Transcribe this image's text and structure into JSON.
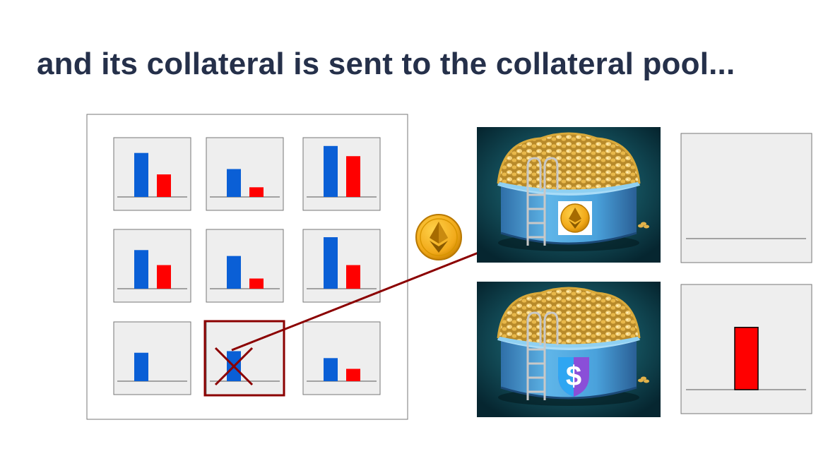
{
  "slide": {
    "title": "and its collateral is sent to the collateral pool..."
  },
  "colors": {
    "title": "#25304a",
    "blue_bar": "#0a5fd6",
    "red_bar": "#ff0000",
    "arrow": "#8b0000",
    "panel_bg": "#eeeeee",
    "panel_border": "#777777"
  },
  "icons": {
    "collateral_coin": "ethereum-coin-icon",
    "stablecoin_logo": "stablecoin-dollar-shield-icon",
    "pool_image": "coin-filled-pool-image",
    "cross_mark": "x-mark-icon"
  },
  "vaults": [
    {
      "collateral": 0.82,
      "debt": 0.42,
      "liquidated": false
    },
    {
      "collateral": 0.52,
      "debt": 0.18,
      "liquidated": false
    },
    {
      "collateral": 0.95,
      "debt": 0.76,
      "liquidated": false
    },
    {
      "collateral": 0.72,
      "debt": 0.44,
      "liquidated": false
    },
    {
      "collateral": 0.61,
      "debt": 0.19,
      "liquidated": false
    },
    {
      "collateral": 0.96,
      "debt": 0.44,
      "liquidated": false
    },
    {
      "collateral": 0.53,
      "debt": 0.0,
      "liquidated": false
    },
    {
      "collateral": 0.56,
      "debt": 0.0,
      "liquidated": true
    },
    {
      "collateral": 0.43,
      "debt": 0.23,
      "liquidated": false
    }
  ],
  "pools": [
    {
      "kind": "collateral-pool",
      "level": 0.0
    },
    {
      "kind": "stablecoin-pool",
      "level": 0.98
    }
  ]
}
